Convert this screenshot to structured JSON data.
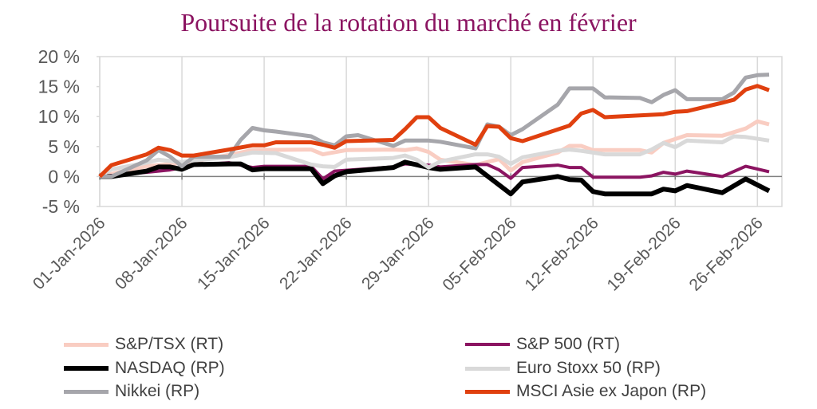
{
  "chart_data": {
    "type": "line",
    "title": "Poursuite de la rotation du marché en février",
    "xlabel": "",
    "ylabel": "",
    "ylim": [
      -5,
      20
    ],
    "yticks": [
      -5,
      0,
      5,
      10,
      15,
      20
    ],
    "ytick_labels": [
      "-5 %",
      "0 %",
      "5 %",
      "10 %",
      "15 %",
      "20 %"
    ],
    "xlim": [
      "2026-01-01",
      "2026-02-28"
    ],
    "xtick_labels": [
      "01-Jan-2026",
      "08-Jan-2026",
      "15-Jan-2026",
      "22-Jan-2026",
      "29-Jan-2026",
      "05-Feb-2026",
      "12-Feb-2026",
      "19-Feb-2026",
      "26-Feb-2026"
    ],
    "xticks": [
      "2026-01-01",
      "2026-01-08",
      "2026-01-15",
      "2026-01-22",
      "2026-01-29",
      "2026-02-05",
      "2026-02-12",
      "2026-02-19",
      "2026-02-26"
    ],
    "grid": "vertical",
    "legend_position": "bottom",
    "series": [
      {
        "name": "S&P/TSX (RT)",
        "color": "#f9cdc2",
        "width": 5,
        "points": [
          [
            "2026-01-01",
            0
          ],
          [
            "2026-01-05",
            1.7
          ],
          [
            "2026-01-07",
            2.1
          ],
          [
            "2026-01-09",
            2.5
          ],
          [
            "2026-01-12",
            3.6
          ],
          [
            "2026-01-14",
            4.4
          ],
          [
            "2026-01-19",
            4.5
          ],
          [
            "2026-01-20",
            3.7
          ],
          [
            "2026-01-22",
            4.4
          ],
          [
            "2026-01-26",
            4.5
          ],
          [
            "2026-01-27",
            4.4
          ],
          [
            "2026-01-28",
            4.7
          ],
          [
            "2026-01-29",
            4.1
          ],
          [
            "2026-01-30",
            2.8
          ],
          [
            "2026-02-02",
            1.9
          ],
          [
            "2026-02-04",
            2.9
          ],
          [
            "2026-02-05",
            1.0
          ],
          [
            "2026-02-06",
            2.4
          ],
          [
            "2026-02-09",
            4.0
          ],
          [
            "2026-02-10",
            5.1
          ],
          [
            "2026-02-11",
            5.1
          ],
          [
            "2026-02-12",
            4.4
          ],
          [
            "2026-02-16",
            4.4
          ],
          [
            "2026-02-17",
            4.0
          ],
          [
            "2026-02-18",
            5.6
          ],
          [
            "2026-02-20",
            6.9
          ],
          [
            "2026-02-23",
            6.8
          ],
          [
            "2026-02-25",
            8.0
          ],
          [
            "2026-02-26",
            9.2
          ],
          [
            "2026-02-27",
            8.7
          ]
        ]
      },
      {
        "name": "S&P 500 (RT)",
        "color": "#8b1461",
        "width": 4,
        "points": [
          [
            "2026-01-01",
            0
          ],
          [
            "2026-01-05",
            0.7
          ],
          [
            "2026-01-07",
            1.1
          ],
          [
            "2026-01-09",
            1.9
          ],
          [
            "2026-01-12",
            2.3
          ],
          [
            "2026-01-14",
            1.5
          ],
          [
            "2026-01-15",
            1.7
          ],
          [
            "2026-01-19",
            1.7
          ],
          [
            "2026-01-20",
            -0.4
          ],
          [
            "2026-01-21",
            0.9
          ],
          [
            "2026-01-26",
            1.6
          ],
          [
            "2026-01-27",
            2.1
          ],
          [
            "2026-01-29",
            1.9
          ],
          [
            "2026-01-30",
            1.6
          ],
          [
            "2026-02-02",
            2.0
          ],
          [
            "2026-02-03",
            2.0
          ],
          [
            "2026-02-04",
            1.1
          ],
          [
            "2026-02-05",
            -0.3
          ],
          [
            "2026-02-06",
            1.5
          ],
          [
            "2026-02-09",
            1.9
          ],
          [
            "2026-02-10",
            1.5
          ],
          [
            "2026-02-11",
            1.5
          ],
          [
            "2026-02-12",
            -0.1
          ],
          [
            "2026-02-16",
            -0.1
          ],
          [
            "2026-02-17",
            0.1
          ],
          [
            "2026-02-18",
            0.7
          ],
          [
            "2026-02-19",
            0.4
          ],
          [
            "2026-02-20",
            0.9
          ],
          [
            "2026-02-23",
            0.0
          ],
          [
            "2026-02-25",
            1.7
          ],
          [
            "2026-02-27",
            0.8
          ]
        ]
      },
      {
        "name": "NASDAQ (RP)",
        "color": "#000000",
        "width": 6,
        "points": [
          [
            "2026-01-01",
            0
          ],
          [
            "2026-01-02",
            0
          ],
          [
            "2026-01-05",
            0.9
          ],
          [
            "2026-01-06",
            1.6
          ],
          [
            "2026-01-07",
            1.6
          ],
          [
            "2026-01-08",
            1.2
          ],
          [
            "2026-01-09",
            2.0
          ],
          [
            "2026-01-12",
            2.1
          ],
          [
            "2026-01-13",
            2.1
          ],
          [
            "2026-01-14",
            1.1
          ],
          [
            "2026-01-15",
            1.3
          ],
          [
            "2026-01-19",
            1.3
          ],
          [
            "2026-01-20",
            -1.2
          ],
          [
            "2026-01-21",
            0.1
          ],
          [
            "2026-01-22",
            0.8
          ],
          [
            "2026-01-26",
            1.5
          ],
          [
            "2026-01-27",
            2.4
          ],
          [
            "2026-01-29",
            1.5
          ],
          [
            "2026-01-30",
            1.2
          ],
          [
            "2026-02-02",
            1.6
          ],
          [
            "2026-02-05",
            -2.9
          ],
          [
            "2026-02-06",
            -0.9
          ],
          [
            "2026-02-09",
            0.0
          ],
          [
            "2026-02-10",
            -0.5
          ],
          [
            "2026-02-11",
            -0.6
          ],
          [
            "2026-02-12",
            -2.5
          ],
          [
            "2026-02-13",
            -2.9
          ],
          [
            "2026-02-17",
            -2.9
          ],
          [
            "2026-02-18",
            -2.1
          ],
          [
            "2026-02-19",
            -2.4
          ],
          [
            "2026-02-20",
            -1.5
          ],
          [
            "2026-02-23",
            -2.7
          ],
          [
            "2026-02-25",
            -0.4
          ],
          [
            "2026-02-27",
            -2.4
          ]
        ]
      },
      {
        "name": "Euro Stoxx 50 (RP)",
        "color": "#d9d9d9",
        "width": 5,
        "points": [
          [
            "2026-01-01",
            0
          ],
          [
            "2026-01-02",
            1.2
          ],
          [
            "2026-01-05",
            2.3
          ],
          [
            "2026-01-06",
            2.8
          ],
          [
            "2026-01-08",
            2.4
          ],
          [
            "2026-01-09",
            2.7
          ],
          [
            "2026-01-12",
            3.2
          ],
          [
            "2026-01-14",
            4.0
          ],
          [
            "2026-01-16",
            3.9
          ],
          [
            "2026-01-19",
            2.0
          ],
          [
            "2026-01-20",
            1.7
          ],
          [
            "2026-01-21",
            1.6
          ],
          [
            "2026-01-22",
            2.8
          ],
          [
            "2026-01-26",
            3.1
          ],
          [
            "2026-01-27",
            3.5
          ],
          [
            "2026-01-28",
            2.8
          ],
          [
            "2026-01-29",
            1.5
          ],
          [
            "2026-01-30",
            2.5
          ],
          [
            "2026-02-02",
            3.7
          ],
          [
            "2026-02-03",
            3.7
          ],
          [
            "2026-02-04",
            3.3
          ],
          [
            "2026-02-05",
            2.1
          ],
          [
            "2026-02-06",
            3.2
          ],
          [
            "2026-02-09",
            4.3
          ],
          [
            "2026-02-10",
            4.5
          ],
          [
            "2026-02-11",
            4.3
          ],
          [
            "2026-02-13",
            3.7
          ],
          [
            "2026-02-16",
            3.7
          ],
          [
            "2026-02-17",
            4.5
          ],
          [
            "2026-02-18",
            5.6
          ],
          [
            "2026-02-19",
            4.9
          ],
          [
            "2026-02-20",
            6.0
          ],
          [
            "2026-02-23",
            5.7
          ],
          [
            "2026-02-24",
            6.7
          ],
          [
            "2026-02-25",
            6.6
          ],
          [
            "2026-02-27",
            6.0
          ]
        ]
      },
      {
        "name": "Nikkei (RP)",
        "color": "#a6a6ab",
        "width": 5,
        "points": [
          [
            "2026-01-01",
            0
          ],
          [
            "2026-01-02",
            0
          ],
          [
            "2026-01-05",
            2.7
          ],
          [
            "2026-01-06",
            4.4
          ],
          [
            "2026-01-07",
            3.3
          ],
          [
            "2026-01-08",
            1.7
          ],
          [
            "2026-01-09",
            3.3
          ],
          [
            "2026-01-12",
            3.3
          ],
          [
            "2026-01-13",
            6.1
          ],
          [
            "2026-01-14",
            8.1
          ],
          [
            "2026-01-15",
            7.7
          ],
          [
            "2026-01-16",
            7.5
          ],
          [
            "2026-01-19",
            6.7
          ],
          [
            "2026-01-20",
            5.7
          ],
          [
            "2026-01-21",
            5.2
          ],
          [
            "2026-01-22",
            6.7
          ],
          [
            "2026-01-23",
            6.9
          ],
          [
            "2026-01-26",
            5.1
          ],
          [
            "2026-01-27",
            6.0
          ],
          [
            "2026-01-29",
            6.0
          ],
          [
            "2026-01-30",
            5.8
          ],
          [
            "2026-02-02",
            4.7
          ],
          [
            "2026-02-03",
            8.7
          ],
          [
            "2026-02-04",
            8.3
          ],
          [
            "2026-02-05",
            6.9
          ],
          [
            "2026-02-06",
            7.9
          ],
          [
            "2026-02-09",
            12.0
          ],
          [
            "2026-02-10",
            14.7
          ],
          [
            "2026-02-12",
            14.7
          ],
          [
            "2026-02-13",
            13.2
          ],
          [
            "2026-02-16",
            13.1
          ],
          [
            "2026-02-17",
            12.4
          ],
          [
            "2026-02-18",
            13.6
          ],
          [
            "2026-02-19",
            14.4
          ],
          [
            "2026-02-20",
            12.9
          ],
          [
            "2026-02-23",
            12.9
          ],
          [
            "2026-02-24",
            14.0
          ],
          [
            "2026-02-25",
            16.5
          ],
          [
            "2026-02-26",
            16.9
          ],
          [
            "2026-02-27",
            17.0
          ]
        ]
      },
      {
        "name": "MSCI Asie ex Japon (RP)",
        "color": "#e0400f",
        "width": 5,
        "points": [
          [
            "2026-01-01",
            0
          ],
          [
            "2026-01-02",
            1.9
          ],
          [
            "2026-01-05",
            3.7
          ],
          [
            "2026-01-06",
            4.8
          ],
          [
            "2026-01-07",
            4.4
          ],
          [
            "2026-01-08",
            3.5
          ],
          [
            "2026-01-09",
            3.5
          ],
          [
            "2026-01-12",
            4.5
          ],
          [
            "2026-01-14",
            5.2
          ],
          [
            "2026-01-15",
            5.2
          ],
          [
            "2026-01-16",
            5.7
          ],
          [
            "2026-01-19",
            5.7
          ],
          [
            "2026-01-20",
            5.3
          ],
          [
            "2026-01-21",
            4.8
          ],
          [
            "2026-01-22",
            5.9
          ],
          [
            "2026-01-26",
            6.1
          ],
          [
            "2026-01-27",
            7.9
          ],
          [
            "2026-01-28",
            9.9
          ],
          [
            "2026-01-29",
            9.9
          ],
          [
            "2026-01-30",
            8.1
          ],
          [
            "2026-02-02",
            5.3
          ],
          [
            "2026-02-03",
            8.4
          ],
          [
            "2026-02-04",
            8.3
          ],
          [
            "2026-02-05",
            6.4
          ],
          [
            "2026-02-06",
            5.9
          ],
          [
            "2026-02-10",
            8.5
          ],
          [
            "2026-02-11",
            10.5
          ],
          [
            "2026-02-12",
            11.1
          ],
          [
            "2026-02-13",
            9.9
          ],
          [
            "2026-02-18",
            10.4
          ],
          [
            "2026-02-19",
            10.8
          ],
          [
            "2026-02-20",
            10.9
          ],
          [
            "2026-02-23",
            12.3
          ],
          [
            "2026-02-24",
            12.8
          ],
          [
            "2026-02-25",
            14.5
          ],
          [
            "2026-02-26",
            15.1
          ],
          [
            "2026-02-27",
            14.4
          ]
        ]
      }
    ]
  }
}
